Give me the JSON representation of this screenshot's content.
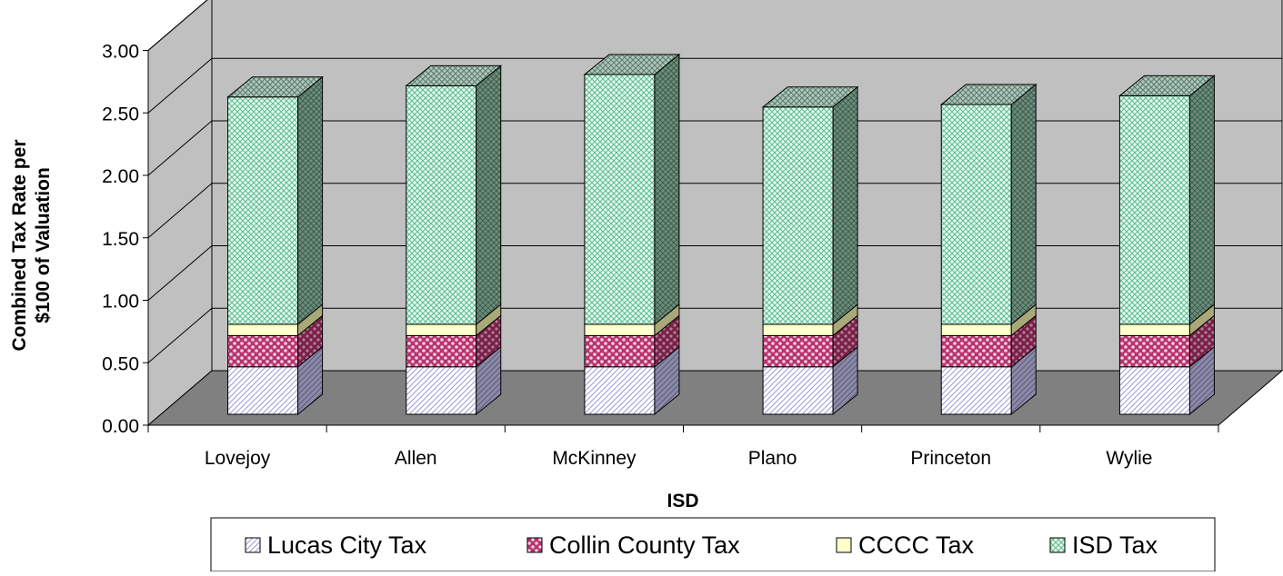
{
  "chart_data": {
    "type": "bar",
    "stacked": true,
    "three_d": true,
    "categories": [
      "Lovejoy",
      "Allen",
      "McKinney",
      "Plano",
      "Princeton",
      "Wylie"
    ],
    "series": [
      {
        "name": "Lucas City Tax",
        "color": "#c8c8f0",
        "pattern": "diagonal-hatch",
        "values": [
          0.38,
          0.38,
          0.38,
          0.38,
          0.38,
          0.38
        ]
      },
      {
        "name": "Collin County Tax",
        "color": "#cc3377",
        "pattern": "checker",
        "values": [
          0.25,
          0.25,
          0.25,
          0.25,
          0.25,
          0.25
        ]
      },
      {
        "name": "CCCC Tax",
        "color": "#ffffcc",
        "pattern": "solid",
        "values": [
          0.09,
          0.09,
          0.09,
          0.09,
          0.09,
          0.09
        ]
      },
      {
        "name": "ISD Tax",
        "color": "#bfe8d4",
        "pattern": "crosshatch",
        "values": [
          1.82,
          1.91,
          2.0,
          1.74,
          1.76,
          1.83
        ]
      }
    ],
    "xlabel": "ISD",
    "ylabel": "Combined Tax Rate per $100 of Valuation",
    "ylabel_lines": [
      "Combined Tax Rate per",
      "$100 of Valuation"
    ],
    "ylim": [
      0,
      3
    ],
    "yticks": [
      "0.00",
      "0.50",
      "1.00",
      "1.50",
      "2.00",
      "2.50",
      "3.00"
    ],
    "grid": true,
    "legend_position": "bottom"
  }
}
